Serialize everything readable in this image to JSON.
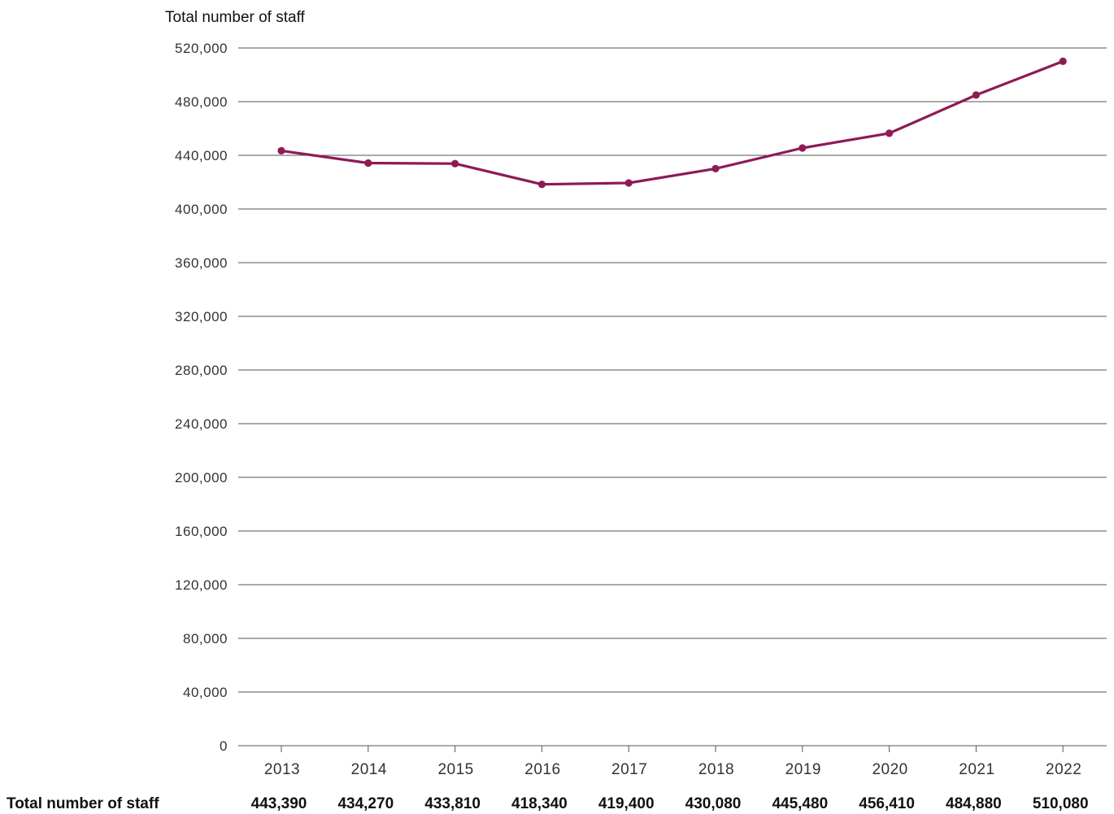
{
  "chart_data": {
    "type": "line",
    "ylabel": "Total number of staff",
    "categories": [
      "2013",
      "2014",
      "2015",
      "2016",
      "2017",
      "2018",
      "2019",
      "2020",
      "2021",
      "2022"
    ],
    "y_ticks": [
      "0",
      "40,000",
      "80,000",
      "120,000",
      "160,000",
      "200,000",
      "240,000",
      "280,000",
      "320,000",
      "360,000",
      "400,000",
      "440,000",
      "480,000",
      "520,000"
    ],
    "ylim": [
      0,
      520000
    ],
    "grid": true,
    "series": [
      {
        "values": [
          443390,
          434270,
          433810,
          418340,
          419400,
          430080,
          445480,
          456410,
          484880,
          510080
        ],
        "color": "#8e1a57"
      }
    ],
    "table": {
      "row_label": "Total number of staff",
      "values": [
        "443,390",
        "434,270",
        "433,810",
        "418,340",
        "419,400",
        "430,080",
        "445,480",
        "456,410",
        "484,880",
        "510,080"
      ]
    }
  }
}
